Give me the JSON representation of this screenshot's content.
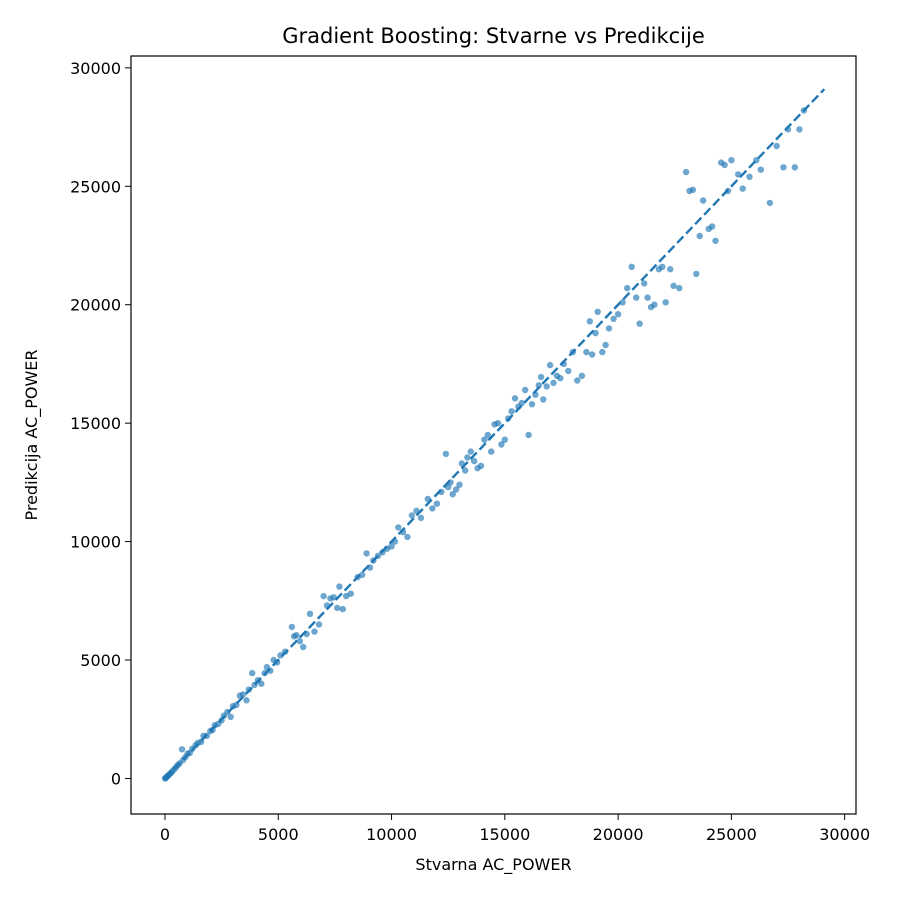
{
  "chart_data": {
    "type": "scatter",
    "title": "Gradient Boosting: Stvarne vs Predikcije",
    "xlabel": "Stvarna AC_POWER",
    "ylabel": "Predikcija AC_POWER",
    "xlim": [
      -1500,
      30500
    ],
    "ylim": [
      -1500,
      30500
    ],
    "xticks": [
      0,
      5000,
      10000,
      15000,
      20000,
      25000,
      30000
    ],
    "yticks": [
      0,
      5000,
      10000,
      15000,
      20000,
      25000,
      30000
    ],
    "grid": false,
    "colors": {
      "points": "#1f77b4",
      "reference_line": "#1f77b4"
    },
    "reference_line": {
      "style": "dashed",
      "from": [
        0,
        0
      ],
      "to": [
        29100,
        29100
      ]
    },
    "series": [
      {
        "points": [
          [
            0,
            0
          ],
          [
            30,
            20
          ],
          [
            60,
            50
          ],
          [
            100,
            90
          ],
          [
            150,
            130
          ],
          [
            200,
            180
          ],
          [
            260,
            230
          ],
          [
            320,
            300
          ],
          [
            400,
            380
          ],
          [
            480,
            470
          ],
          [
            560,
            560
          ],
          [
            650,
            640
          ],
          [
            750,
            1230
          ],
          [
            800,
            780
          ],
          [
            900,
            900
          ],
          [
            1000,
            1050
          ],
          [
            1100,
            1080
          ],
          [
            1200,
            1250
          ],
          [
            1350,
            1400
          ],
          [
            1450,
            1500
          ],
          [
            1600,
            1550
          ],
          [
            1700,
            1800
          ],
          [
            1850,
            1800
          ],
          [
            2000,
            2000
          ],
          [
            2100,
            2050
          ],
          [
            2200,
            2250
          ],
          [
            2350,
            2300
          ],
          [
            2500,
            2450
          ],
          [
            2600,
            2650
          ],
          [
            2750,
            2800
          ],
          [
            2900,
            2600
          ],
          [
            3000,
            3050
          ],
          [
            3150,
            3100
          ],
          [
            3300,
            3500
          ],
          [
            3450,
            3550
          ],
          [
            3600,
            3300
          ],
          [
            3700,
            3750
          ],
          [
            3850,
            4450
          ],
          [
            3950,
            3950
          ],
          [
            4100,
            4150
          ],
          [
            4250,
            4000
          ],
          [
            4400,
            4450
          ],
          [
            4500,
            4700
          ],
          [
            4650,
            4550
          ],
          [
            4800,
            5000
          ],
          [
            4950,
            4900
          ],
          [
            5100,
            5200
          ],
          [
            5300,
            5350
          ],
          [
            5600,
            6400
          ],
          [
            5700,
            6000
          ],
          [
            5800,
            6050
          ],
          [
            5950,
            5800
          ],
          [
            6100,
            5550
          ],
          [
            6250,
            6100
          ],
          [
            6400,
            6950
          ],
          [
            6600,
            6200
          ],
          [
            6800,
            6500
          ],
          [
            7000,
            7700
          ],
          [
            7150,
            7300
          ],
          [
            7300,
            7600
          ],
          [
            7450,
            7650
          ],
          [
            7600,
            7200
          ],
          [
            7700,
            8100
          ],
          [
            7850,
            7150
          ],
          [
            8000,
            7700
          ],
          [
            8200,
            7800
          ],
          [
            8500,
            8500
          ],
          [
            8700,
            8600
          ],
          [
            8900,
            9500
          ],
          [
            9050,
            8900
          ],
          [
            9200,
            9200
          ],
          [
            9400,
            9400
          ],
          [
            9600,
            9550
          ],
          [
            9800,
            9700
          ],
          [
            10000,
            9800
          ],
          [
            10150,
            10000
          ],
          [
            10300,
            10600
          ],
          [
            10500,
            10400
          ],
          [
            10700,
            10200
          ],
          [
            10900,
            11100
          ],
          [
            11100,
            11300
          ],
          [
            11300,
            11000
          ],
          [
            11600,
            11800
          ],
          [
            11800,
            11400
          ],
          [
            12000,
            11600
          ],
          [
            12200,
            12100
          ],
          [
            12400,
            13700
          ],
          [
            12500,
            12300
          ],
          [
            12600,
            12500
          ],
          [
            12700,
            12000
          ],
          [
            12850,
            12200
          ],
          [
            13000,
            12400
          ],
          [
            13100,
            13300
          ],
          [
            13250,
            13000
          ],
          [
            13350,
            13550
          ],
          [
            13500,
            13800
          ],
          [
            13650,
            13400
          ],
          [
            13800,
            13100
          ],
          [
            13950,
            13200
          ],
          [
            14100,
            14300
          ],
          [
            14250,
            14500
          ],
          [
            14400,
            13800
          ],
          [
            14550,
            14950
          ],
          [
            14700,
            15000
          ],
          [
            14850,
            14100
          ],
          [
            15000,
            14300
          ],
          [
            15150,
            15200
          ],
          [
            15300,
            15500
          ],
          [
            15450,
            16050
          ],
          [
            15600,
            15700
          ],
          [
            15750,
            15850
          ],
          [
            15900,
            16400
          ],
          [
            16050,
            14500
          ],
          [
            16200,
            15800
          ],
          [
            16350,
            16200
          ],
          [
            16500,
            16600
          ],
          [
            16600,
            16950
          ],
          [
            16700,
            16000
          ],
          [
            16850,
            16550
          ],
          [
            17000,
            17450
          ],
          [
            17150,
            16700
          ],
          [
            17300,
            17000
          ],
          [
            17450,
            16900
          ],
          [
            17600,
            17500
          ],
          [
            17800,
            17200
          ],
          [
            18000,
            18000
          ],
          [
            18200,
            16800
          ],
          [
            18400,
            17000
          ],
          [
            18600,
            18000
          ],
          [
            18750,
            19300
          ],
          [
            18850,
            17900
          ],
          [
            19000,
            18800
          ],
          [
            19100,
            19700
          ],
          [
            19300,
            18000
          ],
          [
            19450,
            18300
          ],
          [
            19600,
            19000
          ],
          [
            19800,
            19400
          ],
          [
            20000,
            19600
          ],
          [
            20200,
            20100
          ],
          [
            20400,
            20700
          ],
          [
            20600,
            21600
          ],
          [
            20800,
            20300
          ],
          [
            20950,
            19200
          ],
          [
            21150,
            20900
          ],
          [
            21300,
            20300
          ],
          [
            21450,
            19900
          ],
          [
            21600,
            20000
          ],
          [
            21800,
            21500
          ],
          [
            21950,
            21600
          ],
          [
            22100,
            20100
          ],
          [
            22300,
            21500
          ],
          [
            22450,
            20800
          ],
          [
            22700,
            20700
          ],
          [
            23000,
            25600
          ],
          [
            23150,
            24800
          ],
          [
            23300,
            24850
          ],
          [
            23450,
            21300
          ],
          [
            23600,
            22900
          ],
          [
            23750,
            24400
          ],
          [
            24000,
            23200
          ],
          [
            24150,
            23300
          ],
          [
            24300,
            22700
          ],
          [
            24550,
            26000
          ],
          [
            24700,
            25900
          ],
          [
            24850,
            24800
          ],
          [
            25000,
            26100
          ],
          [
            25300,
            25500
          ],
          [
            25500,
            24900
          ],
          [
            25800,
            25400
          ],
          [
            26100,
            26100
          ],
          [
            26300,
            25700
          ],
          [
            26700,
            24300
          ],
          [
            27000,
            26700
          ],
          [
            27300,
            25800
          ],
          [
            27500,
            27400
          ],
          [
            27800,
            25800
          ],
          [
            28000,
            27400
          ],
          [
            28200,
            28200
          ]
        ]
      }
    ]
  }
}
